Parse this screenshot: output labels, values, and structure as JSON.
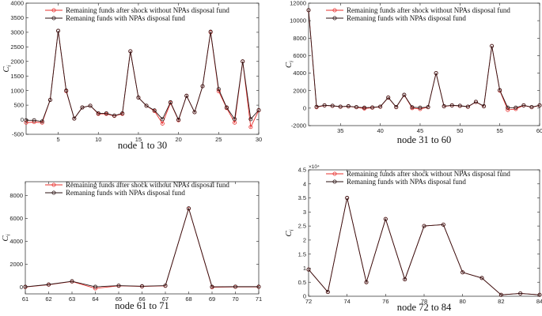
{
  "colors": {
    "shock": "#e8302e",
    "with_fund": "#2a1212"
  },
  "chart_data": [
    {
      "type": "line",
      "xlabel": "node 1 to 30",
      "ylabel": "C",
      "ylabel_sub": "i",
      "xlim": [
        1,
        30
      ],
      "ylim": [
        -500,
        4000
      ],
      "xticks": [
        5,
        10,
        15,
        20,
        25,
        30
      ],
      "yticks": [
        -500,
        0,
        500,
        1000,
        1500,
        2000,
        2500,
        3000,
        3500,
        4000
      ],
      "legend": [
        "Remaining funds after shock without NPAs disposal fund",
        "Remaning funds with NPAs disposal fund"
      ],
      "x": [
        1,
        2,
        3,
        4,
        5,
        6,
        7,
        8,
        9,
        10,
        11,
        12,
        13,
        14,
        15,
        16,
        17,
        18,
        19,
        20,
        21,
        22,
        23,
        24,
        25,
        26,
        27,
        28,
        29,
        30
      ],
      "series": [
        {
          "name": "Remaining funds after shock without NPAs disposal fund",
          "values": [
            -100,
            -80,
            -100,
            680,
            3050,
            980,
            40,
            420,
            480,
            200,
            200,
            130,
            200,
            2350,
            760,
            480,
            300,
            -130,
            580,
            -20,
            820,
            260,
            1150,
            3000,
            980,
            400,
            -100,
            2000,
            -250,
            320
          ]
        },
        {
          "name": "Remaning funds with NPAs disposal fund",
          "values": [
            -20,
            -20,
            -60,
            680,
            3050,
            1000,
            40,
            420,
            480,
            220,
            220,
            140,
            220,
            2350,
            760,
            480,
            320,
            20,
            600,
            0,
            820,
            260,
            1150,
            3020,
            1050,
            420,
            20,
            2000,
            20,
            330
          ]
        }
      ]
    },
    {
      "type": "line",
      "xlabel": "node 31 to 60",
      "ylabel": "C",
      "ylabel_sub": "i",
      "xlim": [
        31,
        60
      ],
      "ylim": [
        -2000,
        12000
      ],
      "xticks": [
        35,
        40,
        45,
        50,
        55,
        60
      ],
      "yticks": [
        -2000,
        0,
        2000,
        4000,
        6000,
        8000,
        10000,
        12000
      ],
      "legend": [
        "Remaining funds after shock without NPAs disposal fund",
        "Remaning funds with NPAs disposal fund"
      ],
      "x": [
        31,
        32,
        33,
        34,
        35,
        36,
        37,
        38,
        39,
        40,
        41,
        42,
        43,
        44,
        45,
        46,
        47,
        48,
        49,
        50,
        51,
        52,
        53,
        54,
        55,
        56,
        57,
        58,
        59,
        60
      ],
      "series": [
        {
          "name": "Remaining funds after shock without NPAs disposal fund",
          "values": [
            11200,
            100,
            300,
            250,
            150,
            200,
            100,
            -50,
            50,
            150,
            1200,
            100,
            1500,
            0,
            -100,
            100,
            4000,
            200,
            300,
            250,
            150,
            700,
            200,
            7100,
            2000,
            -200,
            -100,
            300,
            100,
            300
          ]
        },
        {
          "name": "Remaning funds with NPAs disposal fund",
          "values": [
            11200,
            150,
            320,
            270,
            170,
            220,
            120,
            50,
            80,
            170,
            1220,
            120,
            1520,
            100,
            50,
            120,
            4000,
            220,
            320,
            270,
            170,
            720,
            220,
            7100,
            2050,
            50,
            50,
            320,
            120,
            320
          ]
        }
      ]
    },
    {
      "type": "line",
      "xlabel": "node 61 to 71",
      "ylabel": "C",
      "ylabel_sub": "i",
      "xlim": [
        61,
        71
      ],
      "ylim": [
        -600,
        9200
      ],
      "xticks": [
        61,
        62,
        63,
        64,
        65,
        66,
        67,
        68,
        69,
        70,
        71
      ],
      "yticks": [
        0,
        2000,
        4000,
        6000,
        8000
      ],
      "legend": [
        "Remaining funds after shock without NPAs disposal fund",
        "Remaning funds with NPAs disposal fund"
      ],
      "x": [
        61,
        62,
        63,
        64,
        65,
        66,
        67,
        68,
        69,
        70,
        71
      ],
      "series": [
        {
          "name": "Remaining funds after shock without NPAs disposal fund",
          "values": [
            0,
            200,
            480,
            -120,
            100,
            50,
            100,
            6850,
            -20,
            10,
            10
          ]
        },
        {
          "name": "Remaning funds with NPAs disposal fund",
          "values": [
            20,
            220,
            500,
            20,
            120,
            70,
            120,
            6870,
            20,
            30,
            30
          ]
        }
      ]
    },
    {
      "type": "line",
      "xlabel": "node 72 to 84",
      "ylabel": "C",
      "ylabel_sub": "i",
      "exponent_label": "×10⁴",
      "xlim": [
        72,
        84
      ],
      "ylim": [
        0,
        4.5
      ],
      "xticks": [
        72,
        74,
        76,
        78,
        80,
        82,
        84
      ],
      "yticks": [
        0,
        0.5,
        1,
        1.5,
        2,
        2.5,
        3,
        3.5,
        4,
        4.5
      ],
      "legend": [
        "Remaining funds after shock without NPAs disposal fund",
        "Remaning funds with NPAs disposal fund"
      ],
      "x": [
        72,
        73,
        74,
        75,
        76,
        77,
        78,
        79,
        80,
        81,
        82,
        83,
        84
      ],
      "series": [
        {
          "name": "Remaining funds after shock without NPAs disposal fund",
          "values": [
            0.95,
            0.15,
            3.5,
            0.5,
            2.75,
            0.6,
            2.5,
            2.55,
            0.85,
            0.65,
            0.05,
            0.1,
            0.05
          ]
        },
        {
          "name": "Remaning funds with NPAs disposal fund",
          "values": [
            0.95,
            0.15,
            3.5,
            0.5,
            2.75,
            0.6,
            2.5,
            2.55,
            0.85,
            0.65,
            0.05,
            0.1,
            0.05
          ]
        }
      ]
    }
  ]
}
